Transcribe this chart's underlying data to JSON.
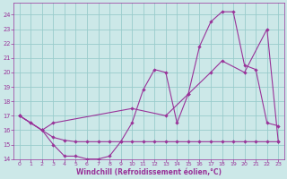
{
  "background_color": "#cce8e8",
  "grid_color": "#99cccc",
  "line_color": "#993399",
  "xlabel": "Windchill (Refroidissement éolien,°C)",
  "xlim": [
    -0.5,
    23.5
  ],
  "ylim": [
    14,
    24.8
  ],
  "yticks": [
    14,
    15,
    16,
    17,
    18,
    19,
    20,
    21,
    22,
    23,
    24
  ],
  "xticks": [
    0,
    1,
    2,
    3,
    4,
    5,
    6,
    7,
    8,
    9,
    10,
    11,
    12,
    13,
    14,
    15,
    16,
    17,
    18,
    19,
    20,
    21,
    22,
    23
  ],
  "line1_x": [
    0,
    1,
    2,
    3,
    4,
    5,
    6,
    7,
    8,
    9,
    10,
    11,
    12,
    13,
    14,
    15,
    16,
    17,
    18,
    19,
    20,
    21,
    22,
    23
  ],
  "line1_y": [
    17.0,
    16.5,
    16.0,
    15.0,
    14.2,
    14.2,
    14.0,
    14.0,
    14.2,
    15.2,
    16.5,
    18.8,
    20.2,
    20.0,
    16.5,
    18.5,
    21.8,
    23.5,
    24.2,
    24.2,
    20.5,
    20.2,
    16.5,
    16.3
  ],
  "line2_x": [
    0,
    1,
    2,
    3,
    4,
    5,
    6,
    7,
    8,
    9,
    10,
    11,
    12,
    13,
    14,
    15,
    16,
    17,
    18,
    19,
    20,
    21,
    22,
    23
  ],
  "line2_y": [
    17.0,
    16.5,
    16.0,
    15.5,
    15.3,
    15.2,
    15.2,
    15.2,
    15.2,
    15.2,
    15.2,
    15.2,
    15.2,
    15.2,
    15.2,
    15.2,
    15.2,
    15.2,
    15.2,
    15.2,
    15.2,
    15.2,
    15.2,
    15.2
  ],
  "line3_x": [
    0,
    2,
    3,
    10,
    13,
    15,
    17,
    18,
    20,
    22,
    23
  ],
  "line3_y": [
    17.0,
    16.0,
    16.5,
    17.5,
    17.0,
    18.5,
    20.0,
    20.8,
    20.0,
    23.0,
    15.2
  ]
}
